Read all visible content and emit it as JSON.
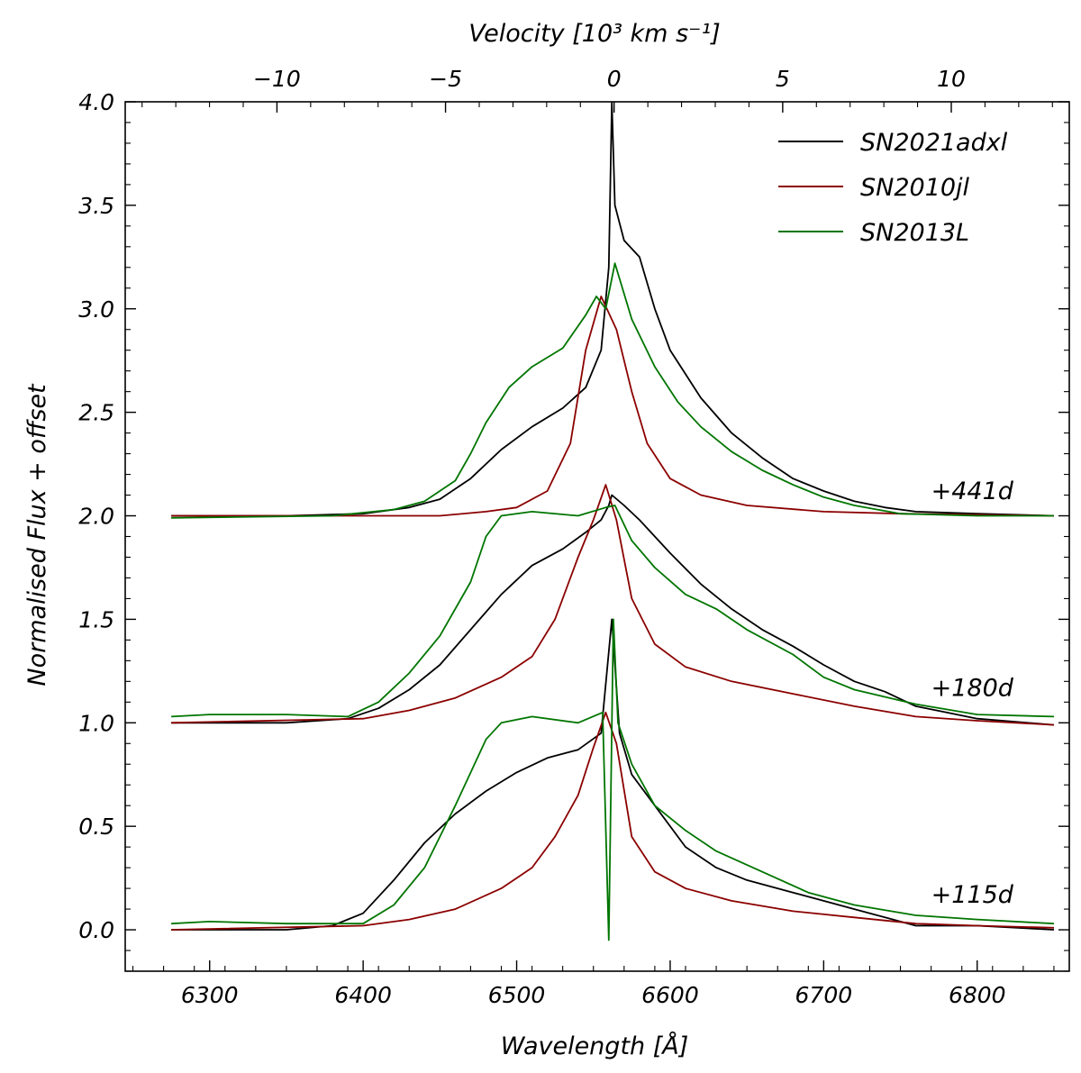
{
  "chart_data": {
    "type": "line",
    "title": "",
    "xlabel": "Wavelength [Å]",
    "ylabel": "Normalised Flux + offset",
    "x2label": "Velocity [10³ km s⁻¹]",
    "xlim": [
      6245,
      6860
    ],
    "ylim": [
      -0.2,
      4.0
    ],
    "x2lim": [
      -14.5,
      13.5
    ],
    "xticks": [
      6300,
      6400,
      6500,
      6600,
      6700,
      6800
    ],
    "xtick_labels": [
      "6300",
      "6400",
      "6500",
      "6600",
      "6700",
      "6800"
    ],
    "yticks": [
      0.0,
      0.5,
      1.0,
      1.5,
      2.0,
      2.5,
      3.0,
      3.5,
      4.0
    ],
    "ytick_labels": [
      "0.0",
      "0.5",
      "1.0",
      "1.5",
      "2.0",
      "2.5",
      "3.0",
      "3.5",
      "4.0"
    ],
    "x2ticks": [
      -10,
      -5,
      0,
      5,
      10
    ],
    "x2tick_labels": [
      "−10",
      "−5",
      "0",
      "5",
      "10"
    ],
    "grid": false,
    "legend": "top-right",
    "series": [
      {
        "name": "SN2021adxl",
        "color": "#000000",
        "epochs": [
          {
            "offset": 2.0,
            "points": [
              [
                6275,
                2.0
              ],
              [
                6350,
                2.0
              ],
              [
                6400,
                2.01
              ],
              [
                6430,
                2.04
              ],
              [
                6450,
                2.08
              ],
              [
                6470,
                2.18
              ],
              [
                6490,
                2.32
              ],
              [
                6510,
                2.43
              ],
              [
                6530,
                2.52
              ],
              [
                6545,
                2.62
              ],
              [
                6555,
                2.8
              ],
              [
                6560,
                3.2
              ],
              [
                6562,
                4.0
              ],
              [
                6564,
                3.5
              ],
              [
                6570,
                3.33
              ],
              [
                6580,
                3.25
              ],
              [
                6590,
                3.0
              ],
              [
                6600,
                2.8
              ],
              [
                6620,
                2.57
              ],
              [
                6640,
                2.4
              ],
              [
                6660,
                2.28
              ],
              [
                6680,
                2.18
              ],
              [
                6700,
                2.12
              ],
              [
                6720,
                2.07
              ],
              [
                6740,
                2.04
              ],
              [
                6760,
                2.02
              ],
              [
                6800,
                2.01
              ],
              [
                6850,
                2.0
              ]
            ]
          },
          {
            "offset": 1.0,
            "points": [
              [
                6275,
                1.0
              ],
              [
                6350,
                1.0
              ],
              [
                6390,
                1.02
              ],
              [
                6410,
                1.07
              ],
              [
                6430,
                1.16
              ],
              [
                6450,
                1.28
              ],
              [
                6470,
                1.45
              ],
              [
                6490,
                1.62
              ],
              [
                6510,
                1.76
              ],
              [
                6530,
                1.84
              ],
              [
                6545,
                1.92
              ],
              [
                6555,
                1.98
              ],
              [
                6560,
                2.05
              ],
              [
                6562,
                2.1
              ],
              [
                6570,
                2.05
              ],
              [
                6580,
                1.98
              ],
              [
                6600,
                1.82
              ],
              [
                6620,
                1.67
              ],
              [
                6640,
                1.55
              ],
              [
                6660,
                1.45
              ],
              [
                6680,
                1.37
              ],
              [
                6700,
                1.28
              ],
              [
                6720,
                1.2
              ],
              [
                6740,
                1.15
              ],
              [
                6760,
                1.08
              ],
              [
                6780,
                1.05
              ],
              [
                6800,
                1.02
              ],
              [
                6850,
                0.99
              ]
            ]
          },
          {
            "offset": 0.0,
            "points": [
              [
                6275,
                0.0
              ],
              [
                6350,
                0.0
              ],
              [
                6380,
                0.02
              ],
              [
                6400,
                0.08
              ],
              [
                6420,
                0.24
              ],
              [
                6440,
                0.42
              ],
              [
                6460,
                0.56
              ],
              [
                6480,
                0.67
              ],
              [
                6500,
                0.76
              ],
              [
                6520,
                0.83
              ],
              [
                6540,
                0.87
              ],
              [
                6555,
                0.95
              ],
              [
                6562,
                1.5
              ],
              [
                6567,
                0.95
              ],
              [
                6575,
                0.75
              ],
              [
                6590,
                0.6
              ],
              [
                6610,
                0.4
              ],
              [
                6630,
                0.3
              ],
              [
                6650,
                0.24
              ],
              [
                6680,
                0.18
              ],
              [
                6700,
                0.14
              ],
              [
                6720,
                0.1
              ],
              [
                6740,
                0.06
              ],
              [
                6760,
                0.02
              ],
              [
                6800,
                0.02
              ],
              [
                6850,
                0.0
              ]
            ]
          }
        ]
      },
      {
        "name": "SN2010jl",
        "color": "#8b0000",
        "epochs": [
          {
            "offset": 2.0,
            "points": [
              [
                6275,
                2.0
              ],
              [
                6400,
                2.0
              ],
              [
                6450,
                2.0
              ],
              [
                6480,
                2.02
              ],
              [
                6500,
                2.04
              ],
              [
                6520,
                2.12
              ],
              [
                6535,
                2.35
              ],
              [
                6545,
                2.8
              ],
              [
                6555,
                3.06
              ],
              [
                6565,
                2.9
              ],
              [
                6575,
                2.6
              ],
              [
                6585,
                2.35
              ],
              [
                6600,
                2.18
              ],
              [
                6620,
                2.1
              ],
              [
                6650,
                2.05
              ],
              [
                6700,
                2.02
              ],
              [
                6750,
                2.01
              ],
              [
                6850,
                2.0
              ]
            ]
          },
          {
            "offset": 1.0,
            "points": [
              [
                6275,
                1.0
              ],
              [
                6400,
                1.02
              ],
              [
                6430,
                1.06
              ],
              [
                6460,
                1.12
              ],
              [
                6490,
                1.22
              ],
              [
                6510,
                1.32
              ],
              [
                6525,
                1.5
              ],
              [
                6540,
                1.8
              ],
              [
                6550,
                1.98
              ],
              [
                6558,
                2.15
              ],
              [
                6565,
                1.98
              ],
              [
                6575,
                1.6
              ],
              [
                6590,
                1.38
              ],
              [
                6610,
                1.27
              ],
              [
                6640,
                1.2
              ],
              [
                6680,
                1.14
              ],
              [
                6720,
                1.08
              ],
              [
                6760,
                1.03
              ],
              [
                6800,
                1.01
              ],
              [
                6850,
                0.99
              ]
            ]
          },
          {
            "offset": 0.0,
            "points": [
              [
                6275,
                0.0
              ],
              [
                6400,
                0.02
              ],
              [
                6430,
                0.05
              ],
              [
                6460,
                0.1
              ],
              [
                6490,
                0.2
              ],
              [
                6510,
                0.3
              ],
              [
                6525,
                0.45
              ],
              [
                6540,
                0.65
              ],
              [
                6550,
                0.88
              ],
              [
                6558,
                1.05
              ],
              [
                6565,
                0.9
              ],
              [
                6575,
                0.45
              ],
              [
                6590,
                0.28
              ],
              [
                6610,
                0.2
              ],
              [
                6640,
                0.14
              ],
              [
                6680,
                0.09
              ],
              [
                6720,
                0.06
              ],
              [
                6760,
                0.03
              ],
              [
                6800,
                0.02
              ],
              [
                6850,
                0.01
              ]
            ]
          }
        ]
      },
      {
        "name": "SN2013L",
        "color": "#007500",
        "epochs": [
          {
            "offset": 2.0,
            "points": [
              [
                6275,
                1.99
              ],
              [
                6380,
                2.0
              ],
              [
                6420,
                2.03
              ],
              [
                6440,
                2.07
              ],
              [
                6460,
                2.17
              ],
              [
                6470,
                2.3
              ],
              [
                6480,
                2.45
              ],
              [
                6495,
                2.62
              ],
              [
                6510,
                2.72
              ],
              [
                6530,
                2.81
              ],
              [
                6545,
                2.97
              ],
              [
                6552,
                3.06
              ],
              [
                6558,
                3.0
              ],
              [
                6564,
                3.22
              ],
              [
                6575,
                2.95
              ],
              [
                6590,
                2.72
              ],
              [
                6605,
                2.55
              ],
              [
                6620,
                2.43
              ],
              [
                6640,
                2.31
              ],
              [
                6660,
                2.22
              ],
              [
                6680,
                2.15
              ],
              [
                6700,
                2.09
              ],
              [
                6720,
                2.05
              ],
              [
                6750,
                2.01
              ],
              [
                6800,
                2.0
              ],
              [
                6850,
                2.0
              ]
            ]
          },
          {
            "offset": 1.0,
            "points": [
              [
                6275,
                1.03
              ],
              [
                6300,
                1.04
              ],
              [
                6350,
                1.04
              ],
              [
                6390,
                1.03
              ],
              [
                6410,
                1.1
              ],
              [
                6430,
                1.24
              ],
              [
                6450,
                1.42
              ],
              [
                6470,
                1.68
              ],
              [
                6480,
                1.9
              ],
              [
                6490,
                2.0
              ],
              [
                6510,
                2.02
              ],
              [
                6540,
                2.0
              ],
              [
                6558,
                2.04
              ],
              [
                6564,
                2.05
              ],
              [
                6575,
                1.88
              ],
              [
                6590,
                1.75
              ],
              [
                6610,
                1.62
              ],
              [
                6630,
                1.55
              ],
              [
                6650,
                1.45
              ],
              [
                6680,
                1.33
              ],
              [
                6700,
                1.22
              ],
              [
                6720,
                1.16
              ],
              [
                6760,
                1.09
              ],
              [
                6800,
                1.04
              ],
              [
                6850,
                1.03
              ]
            ]
          },
          {
            "offset": 0.0,
            "points": [
              [
                6275,
                0.03
              ],
              [
                6300,
                0.04
              ],
              [
                6350,
                0.03
              ],
              [
                6400,
                0.03
              ],
              [
                6420,
                0.12
              ],
              [
                6440,
                0.3
              ],
              [
                6460,
                0.6
              ],
              [
                6480,
                0.92
              ],
              [
                6490,
                1.0
              ],
              [
                6510,
                1.03
              ],
              [
                6540,
                1.0
              ],
              [
                6556,
                1.05
              ],
              [
                6560,
                -0.05
              ],
              [
                6563,
                1.5
              ],
              [
                6566,
                1.0
              ],
              [
                6575,
                0.8
              ],
              [
                6590,
                0.6
              ],
              [
                6610,
                0.48
              ],
              [
                6630,
                0.38
              ],
              [
                6660,
                0.28
              ],
              [
                6690,
                0.18
              ],
              [
                6720,
                0.12
              ],
              [
                6760,
                0.07
              ],
              [
                6800,
                0.05
              ],
              [
                6850,
                0.03
              ]
            ]
          }
        ]
      }
    ],
    "annotations": [
      {
        "text": "+441d",
        "x": 6770,
        "y": 2.08
      },
      {
        "text": "+180d",
        "x": 6770,
        "y": 1.13
      },
      {
        "text": "+115d",
        "x": 6770,
        "y": 0.13
      }
    ]
  }
}
